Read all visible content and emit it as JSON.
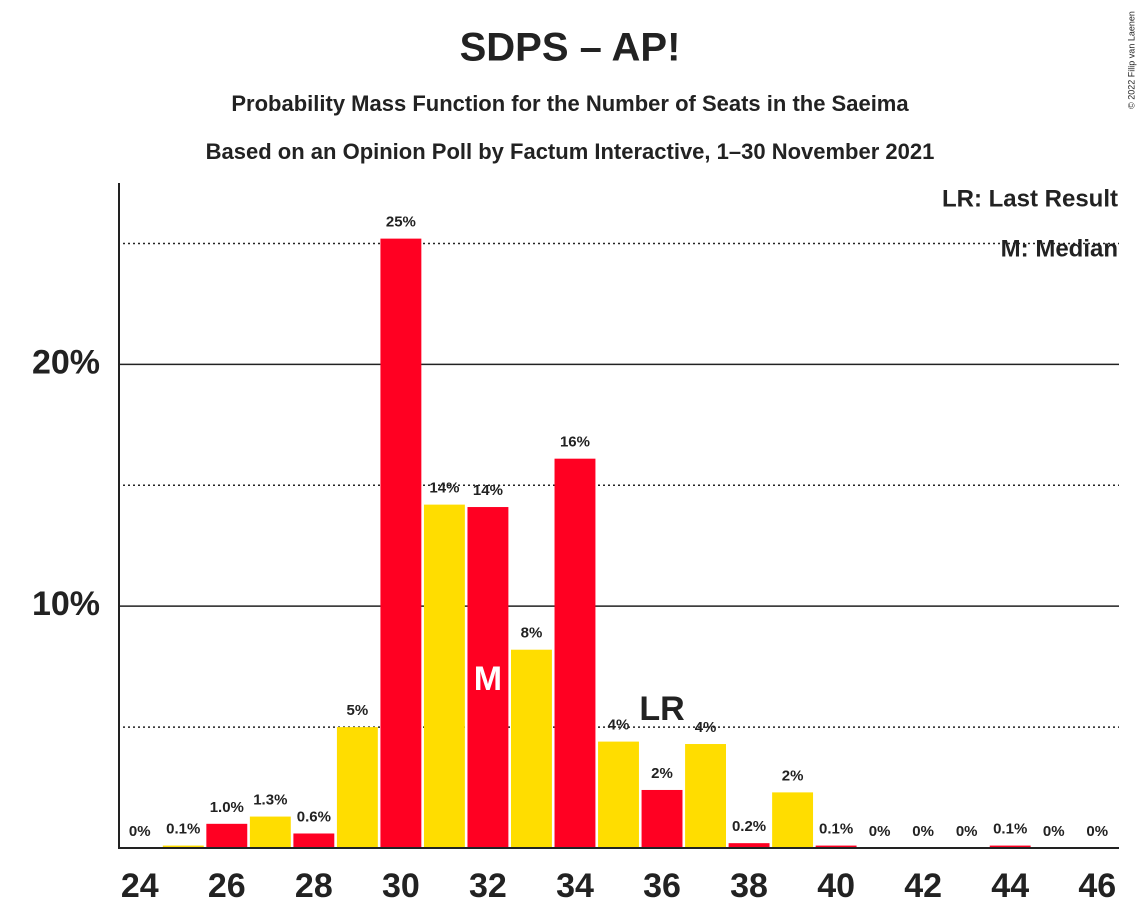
{
  "chart_data": {
    "type": "bar",
    "title": "SDPS – AP!",
    "subtitle": "Probability Mass Function for the Number of Seats in the Saeima",
    "subtitle2": "Based on an Opinion Poll by Factum Interactive, 1–30 November 2021",
    "x": [
      24,
      25,
      26,
      27,
      28,
      29,
      30,
      31,
      32,
      33,
      34,
      35,
      36,
      37,
      38,
      39,
      40,
      41,
      42,
      43,
      44,
      45,
      46
    ],
    "values": [
      0,
      0.1,
      1.0,
      1.3,
      0.6,
      5.0,
      25.2,
      14.2,
      14.1,
      8.2,
      16.1,
      4.4,
      2.4,
      4.3,
      0.2,
      2.3,
      0.1,
      0,
      0,
      0,
      0.1,
      0,
      0
    ],
    "value_labels": [
      "0%",
      "0.1%",
      "1.0%",
      "1.3%",
      "0.6%",
      "5%",
      "25%",
      "14%",
      "14%",
      "8%",
      "16%",
      "4%",
      "2%",
      "4%",
      "0.2%",
      "2%",
      "0.1%",
      "0%",
      "0%",
      "0%",
      "0.1%",
      "0%",
      "0%"
    ],
    "colors": [
      "#ff0022",
      "#ffdd00",
      "#ff0022",
      "#ffdd00",
      "#ff0022",
      "#ffdd00",
      "#ff0022",
      "#ffdd00",
      "#ff0022",
      "#ffdd00",
      "#ff0022",
      "#ffdd00",
      "#ff0022",
      "#ffdd00",
      "#ff0022",
      "#ffdd00",
      "#ff0022",
      "#ffdd00",
      "#ff0022",
      "#ffdd00",
      "#ff0022",
      "#ffdd00",
      "#ff0022"
    ],
    "xlim": [
      23.5,
      46.5
    ],
    "xticks": [
      24,
      26,
      28,
      30,
      32,
      34,
      36,
      38,
      40,
      42,
      44,
      46
    ],
    "ylim": [
      0,
      27.5
    ],
    "yticks": [
      {
        "value": 10,
        "label": "10%"
      },
      {
        "value": 20,
        "label": "20%"
      }
    ],
    "minor_yticks": [
      5,
      15,
      25
    ],
    "median": 32,
    "median_label": "M",
    "last_result": 36,
    "last_result_label": "LR",
    "legend": [
      "LR: Last Result",
      "M: Median"
    ],
    "copyright": "© 2022 Filip van Laenen"
  }
}
